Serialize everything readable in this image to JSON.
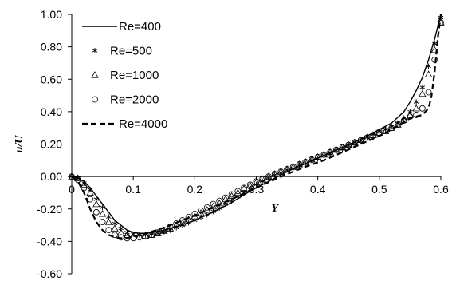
{
  "chart_data": {
    "type": "line",
    "xlabel": "Y",
    "ylabel": "u/U",
    "xlim": [
      0,
      0.6
    ],
    "ylim": [
      -0.6,
      1.0
    ],
    "x_ticks": [
      "0",
      "0.1",
      "0.2",
      "0.3",
      "0.4",
      "0.5",
      "0.6"
    ],
    "y_ticks": [
      "-0.60",
      "-0.40",
      "-0.20",
      "0.00",
      "0.20",
      "0.40",
      "0.60",
      "0.80",
      "1.00"
    ],
    "grid": false,
    "legend_position": "top-left",
    "series": [
      {
        "name": "Re=400",
        "style": "solid",
        "x": [
          0,
          0.01,
          0.02,
          0.03,
          0.04,
          0.05,
          0.06,
          0.07,
          0.08,
          0.09,
          0.1,
          0.11,
          0.12,
          0.13,
          0.15,
          0.17,
          0.2,
          0.23,
          0.26,
          0.29,
          0.32,
          0.35,
          0.38,
          0.41,
          0.44,
          0.47,
          0.5,
          0.52,
          0.54,
          0.55,
          0.56,
          0.57,
          0.58,
          0.59,
          0.6
        ],
        "y": [
          0.0,
          -0.01,
          -0.03,
          -0.07,
          -0.12,
          -0.17,
          -0.22,
          -0.27,
          -0.3,
          -0.33,
          -0.345,
          -0.35,
          -0.35,
          -0.345,
          -0.33,
          -0.31,
          -0.27,
          -0.22,
          -0.16,
          -0.09,
          -0.03,
          0.03,
          0.08,
          0.13,
          0.18,
          0.23,
          0.29,
          0.33,
          0.4,
          0.46,
          0.53,
          0.61,
          0.72,
          0.85,
          1.0
        ]
      },
      {
        "name": "Re=500",
        "style": "asterisk",
        "x": [
          0,
          0.01,
          0.02,
          0.03,
          0.04,
          0.05,
          0.06,
          0.07,
          0.08,
          0.09,
          0.1,
          0.11,
          0.12,
          0.13,
          0.14,
          0.15,
          0.16,
          0.17,
          0.18,
          0.19,
          0.2,
          0.21,
          0.22,
          0.23,
          0.24,
          0.25,
          0.26,
          0.27,
          0.28,
          0.29,
          0.3,
          0.31,
          0.32,
          0.33,
          0.34,
          0.35,
          0.36,
          0.37,
          0.38,
          0.39,
          0.4,
          0.41,
          0.42,
          0.43,
          0.44,
          0.45,
          0.46,
          0.47,
          0.48,
          0.49,
          0.5,
          0.51,
          0.52,
          0.53,
          0.54,
          0.55,
          0.56,
          0.57,
          0.58,
          0.59,
          0.6
        ],
        "y": [
          0.0,
          -0.01,
          -0.04,
          -0.08,
          -0.14,
          -0.19,
          -0.25,
          -0.29,
          -0.32,
          -0.345,
          -0.355,
          -0.36,
          -0.36,
          -0.355,
          -0.35,
          -0.34,
          -0.33,
          -0.315,
          -0.3,
          -0.285,
          -0.27,
          -0.25,
          -0.235,
          -0.215,
          -0.195,
          -0.17,
          -0.15,
          -0.125,
          -0.1,
          -0.08,
          -0.05,
          -0.03,
          -0.01,
          0.01,
          0.02,
          0.04,
          0.05,
          0.07,
          0.08,
          0.1,
          0.11,
          0.13,
          0.14,
          0.16,
          0.17,
          0.19,
          0.21,
          0.22,
          0.24,
          0.26,
          0.28,
          0.29,
          0.31,
          0.33,
          0.36,
          0.4,
          0.46,
          0.55,
          0.68,
          0.82,
          0.98
        ]
      },
      {
        "name": "Re=1000",
        "style": "triangle",
        "x": [
          0,
          0.01,
          0.02,
          0.03,
          0.04,
          0.05,
          0.06,
          0.07,
          0.08,
          0.09,
          0.1,
          0.11,
          0.12,
          0.13,
          0.14,
          0.15,
          0.16,
          0.17,
          0.18,
          0.19,
          0.2,
          0.21,
          0.22,
          0.23,
          0.24,
          0.25,
          0.26,
          0.27,
          0.28,
          0.29,
          0.3,
          0.31,
          0.32,
          0.33,
          0.34,
          0.35,
          0.36,
          0.37,
          0.38,
          0.39,
          0.4,
          0.41,
          0.42,
          0.43,
          0.44,
          0.45,
          0.46,
          0.47,
          0.48,
          0.49,
          0.5,
          0.51,
          0.52,
          0.53,
          0.54,
          0.55,
          0.56,
          0.57,
          0.58,
          0.59,
          0.6
        ],
        "y": [
          0.0,
          -0.01,
          -0.05,
          -0.1,
          -0.17,
          -0.23,
          -0.28,
          -0.32,
          -0.345,
          -0.36,
          -0.37,
          -0.37,
          -0.365,
          -0.36,
          -0.35,
          -0.335,
          -0.32,
          -0.3,
          -0.285,
          -0.265,
          -0.245,
          -0.225,
          -0.205,
          -0.185,
          -0.165,
          -0.14,
          -0.12,
          -0.1,
          -0.075,
          -0.055,
          -0.035,
          -0.015,
          0.0,
          0.015,
          0.03,
          0.045,
          0.06,
          0.075,
          0.09,
          0.105,
          0.12,
          0.135,
          0.15,
          0.165,
          0.18,
          0.195,
          0.21,
          0.225,
          0.24,
          0.255,
          0.27,
          0.28,
          0.3,
          0.32,
          0.35,
          0.38,
          0.42,
          0.51,
          0.63,
          0.78,
          0.95
        ]
      },
      {
        "name": "Re=2000",
        "style": "circle",
        "x": [
          0,
          0.01,
          0.02,
          0.03,
          0.04,
          0.05,
          0.06,
          0.07,
          0.08,
          0.09,
          0.1,
          0.11,
          0.12,
          0.13,
          0.14,
          0.15,
          0.16,
          0.17,
          0.18,
          0.19,
          0.2,
          0.21,
          0.22,
          0.23,
          0.24,
          0.25,
          0.26,
          0.27,
          0.28,
          0.29,
          0.3,
          0.31,
          0.32,
          0.33,
          0.34,
          0.35,
          0.36,
          0.37,
          0.38,
          0.39,
          0.4,
          0.41,
          0.42,
          0.43,
          0.44,
          0.45,
          0.46,
          0.47,
          0.48,
          0.49,
          0.5,
          0.51,
          0.52,
          0.53,
          0.54,
          0.55,
          0.56,
          0.57,
          0.58,
          0.59,
          0.6
        ],
        "y": [
          0.0,
          -0.02,
          -0.07,
          -0.14,
          -0.22,
          -0.28,
          -0.33,
          -0.36,
          -0.375,
          -0.38,
          -0.38,
          -0.375,
          -0.37,
          -0.36,
          -0.345,
          -0.33,
          -0.31,
          -0.29,
          -0.27,
          -0.25,
          -0.23,
          -0.21,
          -0.19,
          -0.17,
          -0.15,
          -0.13,
          -0.11,
          -0.09,
          -0.07,
          -0.05,
          -0.03,
          -0.015,
          0.0,
          0.015,
          0.03,
          0.045,
          0.06,
          0.075,
          0.09,
          0.105,
          0.12,
          0.135,
          0.15,
          0.165,
          0.18,
          0.195,
          0.21,
          0.225,
          0.24,
          0.255,
          0.27,
          0.285,
          0.3,
          0.32,
          0.345,
          0.37,
          0.38,
          0.42,
          0.52,
          0.72,
          0.95
        ]
      },
      {
        "name": "Re=4000",
        "style": "dashed",
        "x": [
          0,
          0.01,
          0.02,
          0.03,
          0.04,
          0.05,
          0.06,
          0.07,
          0.08,
          0.09,
          0.1,
          0.11,
          0.12,
          0.13,
          0.15,
          0.17,
          0.2,
          0.23,
          0.26,
          0.29,
          0.32,
          0.35,
          0.38,
          0.41,
          0.44,
          0.47,
          0.5,
          0.52,
          0.54,
          0.55,
          0.56,
          0.57,
          0.58,
          0.585,
          0.59,
          0.595,
          0.6
        ],
        "y": [
          0.0,
          -0.03,
          -0.1,
          -0.2,
          -0.28,
          -0.33,
          -0.36,
          -0.375,
          -0.38,
          -0.38,
          -0.37,
          -0.36,
          -0.35,
          -0.34,
          -0.315,
          -0.285,
          -0.24,
          -0.19,
          -0.14,
          -0.085,
          -0.035,
          0.015,
          0.06,
          0.1,
          0.15,
          0.2,
          0.25,
          0.29,
          0.335,
          0.36,
          0.37,
          0.38,
          0.42,
          0.5,
          0.65,
          0.85,
          1.0
        ]
      }
    ]
  }
}
